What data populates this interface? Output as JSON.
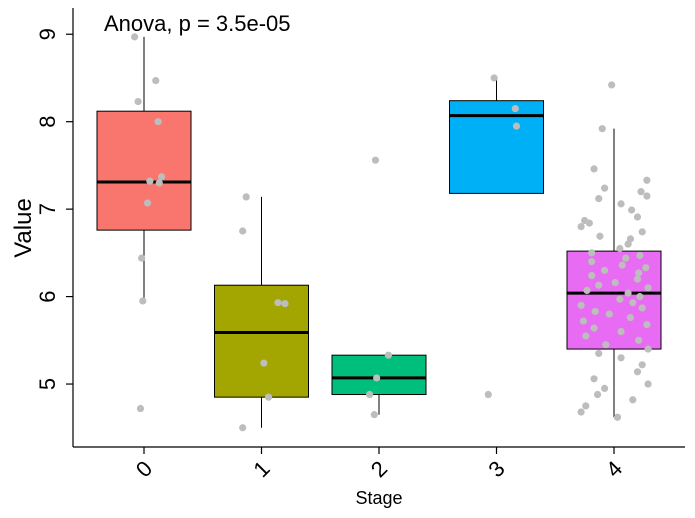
{
  "chart_data": {
    "type": "boxplot",
    "title": "",
    "annotation": "Anova, p = 3.5e-05",
    "xlabel": "Stage",
    "ylabel": "Value",
    "categories": [
      "0",
      "1",
      "2",
      "3",
      "4"
    ],
    "yticks": [
      "5",
      "6",
      "7",
      "8",
      "9"
    ],
    "ylim": [
      4.28,
      9.3
    ],
    "boxes": [
      {
        "category": "0",
        "color": "#F8766D",
        "lower_whisker": 5.95,
        "q1": 6.76,
        "median": 7.31,
        "q3": 8.12,
        "upper_whisker": 8.97
      },
      {
        "category": "1",
        "color": "#A3A500",
        "lower_whisker": 4.5,
        "q1": 4.85,
        "median": 5.59,
        "q3": 6.13,
        "upper_whisker": 7.14
      },
      {
        "category": "2",
        "color": "#00BF7D",
        "lower_whisker": 4.65,
        "q1": 4.88,
        "median": 5.07,
        "q3": 5.33,
        "upper_whisker": 5.33
      },
      {
        "category": "3",
        "color": "#00B0F6",
        "lower_whisker": 7.18,
        "q1": 7.18,
        "median": 8.07,
        "q3": 8.24,
        "upper_whisker": 8.5
      },
      {
        "category": "4",
        "color": "#E76BF3",
        "lower_whisker": 4.62,
        "q1": 5.4,
        "median": 6.04,
        "q3": 6.52,
        "upper_whisker": 7.92
      }
    ],
    "points": [
      {
        "category": "0",
        "values": [
          8.97,
          8.47,
          8.23,
          8.0,
          7.37,
          7.32,
          7.3,
          7.07,
          6.44,
          5.95,
          4.72
        ],
        "offsets": [
          -0.08,
          0.1,
          -0.05,
          0.12,
          0.15,
          0.05,
          0.13,
          0.03,
          -0.02,
          -0.01,
          -0.03
        ]
      },
      {
        "category": "1",
        "values": [
          7.14,
          6.75,
          5.93,
          5.92,
          5.24,
          4.85,
          4.5
        ],
        "offsets": [
          -0.13,
          -0.16,
          0.14,
          0.2,
          0.02,
          0.06,
          -0.16
        ]
      },
      {
        "category": "2",
        "values": [
          7.56,
          5.33,
          5.07,
          4.88,
          4.65
        ],
        "offsets": [
          -0.03,
          0.08,
          -0.02,
          -0.08,
          -0.04
        ]
      },
      {
        "category": "3",
        "values": [
          8.5,
          8.15,
          7.95,
          4.88
        ],
        "offsets": [
          -0.02,
          0.16,
          0.17,
          -0.07
        ]
      },
      {
        "category": "4",
        "values": [
          8.42,
          7.92,
          7.46,
          7.33,
          7.24,
          7.2,
          7.15,
          7.12,
          7.06,
          6.99,
          6.91,
          6.87,
          6.84,
          6.8,
          6.74,
          6.69,
          6.66,
          6.6,
          6.55,
          6.5,
          6.47,
          6.44,
          6.4,
          6.36,
          6.33,
          6.3,
          6.27,
          6.24,
          6.2,
          6.16,
          6.13,
          6.1,
          6.07,
          6.04,
          6.0,
          5.97,
          5.93,
          5.9,
          5.87,
          5.83,
          5.8,
          5.76,
          5.72,
          5.68,
          5.64,
          5.6,
          5.55,
          5.5,
          5.45,
          5.4,
          5.35,
          5.3,
          5.22,
          5.14,
          5.06,
          5.0,
          4.95,
          4.88,
          4.82,
          4.75,
          4.68,
          4.62
        ],
        "offsets": [
          -0.02,
          -0.1,
          -0.17,
          0.28,
          -0.08,
          0.23,
          0.28,
          -0.13,
          0.06,
          0.15,
          0.2,
          -0.25,
          -0.21,
          -0.28,
          0.24,
          -0.12,
          0.14,
          0.12,
          0.05,
          -0.19,
          0.22,
          0.1,
          -0.19,
          0.07,
          0.27,
          -0.08,
          0.21,
          -0.19,
          0.2,
          0.01,
          -0.13,
          0.29,
          -0.23,
          0.12,
          0.22,
          0.05,
          0.16,
          -0.28,
          0.24,
          -0.16,
          -0.04,
          0.14,
          -0.26,
          0.28,
          -0.17,
          0.06,
          -0.24,
          0.21,
          -0.07,
          0.29,
          -0.13,
          0.06,
          0.24,
          0.2,
          -0.17,
          0.29,
          -0.08,
          -0.14,
          0.16,
          -0.24,
          -0.28,
          0.03
        ]
      }
    ]
  }
}
